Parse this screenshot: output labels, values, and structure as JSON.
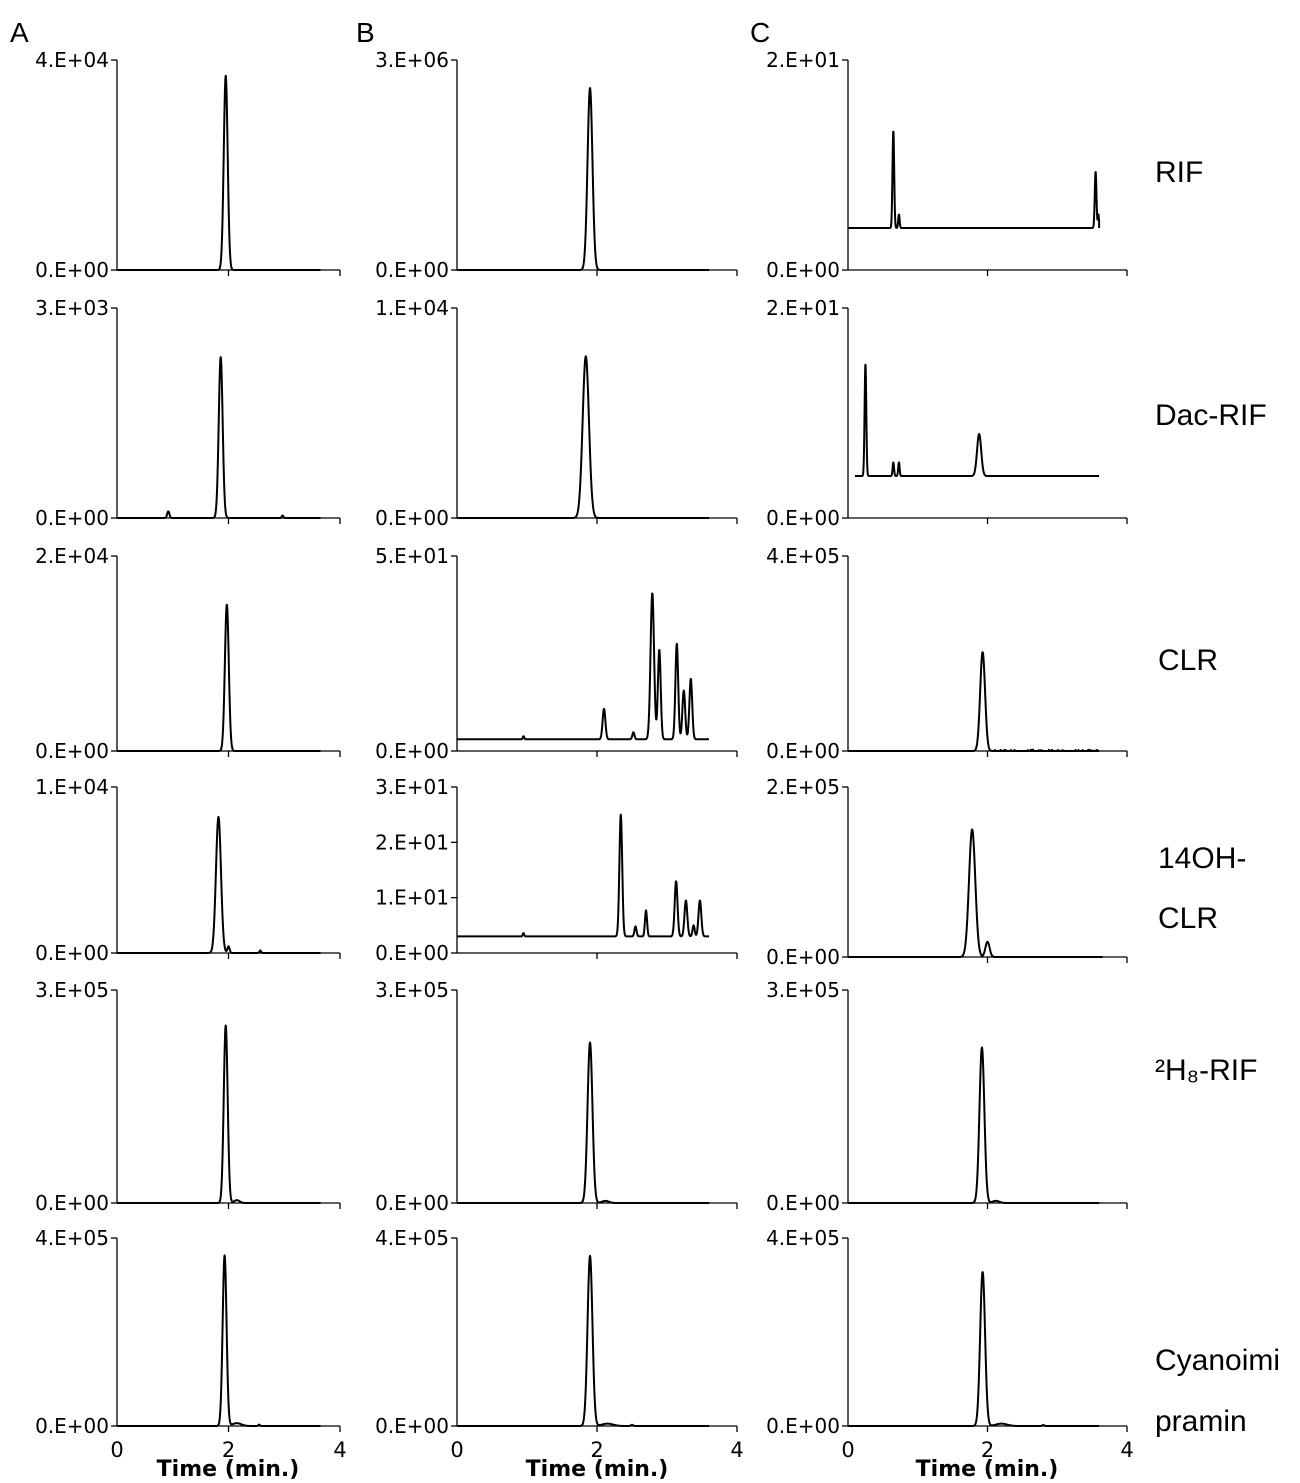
{
  "figure": {
    "column_labels": [
      "A",
      "B",
      "C"
    ],
    "row_labels": [
      [
        "RIF"
      ],
      [
        "Dac-RIF"
      ],
      [
        "CLR"
      ],
      [
        "14OH-",
        "CLR"
      ],
      [
        "²H₈-RIF"
      ],
      [
        "Cyanoimi",
        "pramin"
      ]
    ],
    "x_tick_labels": [
      "0",
      "2",
      "4"
    ],
    "x_axis_title": "Time (min.)"
  },
  "chart_data": [
    {
      "type": "line",
      "panel": "A-RIF",
      "xlim": [
        0,
        4
      ],
      "ylim": [
        0,
        40000
      ],
      "y_tick_labels": [
        "4.E+04",
        "0.E+00"
      ],
      "x_tick_labels": [
        "0",
        "2",
        "4"
      ],
      "baseline": 0,
      "noise": 0,
      "end_x": 3.65,
      "peaks": [
        {
          "x": 1.95,
          "height": 37000,
          "width": 0.035
        }
      ]
    },
    {
      "type": "line",
      "panel": "B-RIF",
      "xlim": [
        0,
        4
      ],
      "ylim": [
        0,
        3000000
      ],
      "y_tick_labels": [
        "3.E+06",
        "0.E+00"
      ],
      "x_tick_labels": [
        "0",
        "2",
        "4"
      ],
      "baseline": 0,
      "noise": 0,
      "end_x": 3.6,
      "peaks": [
        {
          "x": 1.9,
          "height": 2600000,
          "width": 0.035
        }
      ]
    },
    {
      "type": "line",
      "panel": "C-RIF",
      "xlim": [
        0,
        4
      ],
      "ylim": [
        0,
        20
      ],
      "y_tick_labels": [
        "2.E+01",
        "0.E+00"
      ],
      "x_tick_labels": [
        "0",
        "2",
        "4"
      ],
      "baseline": 4,
      "noise": 0,
      "start_x": 0,
      "end_x": 3.6,
      "peaks": [
        {
          "x": 0.65,
          "height": 9.3,
          "width": 0.012
        },
        {
          "x": 0.73,
          "height": 1.3,
          "width": 0.01
        },
        {
          "x": 3.55,
          "height": 5.4,
          "width": 0.012
        },
        {
          "x": 3.59,
          "height": 1.3,
          "width": 0.008
        }
      ]
    },
    {
      "type": "line",
      "panel": "A-Dac-RIF",
      "xlim": [
        0,
        4
      ],
      "ylim": [
        0,
        3000
      ],
      "y_tick_labels": [
        "3.E+03",
        "0.E+00"
      ],
      "x_tick_labels": [
        "0",
        "2",
        "4"
      ],
      "baseline": 0,
      "noise": 0,
      "end_x": 3.65,
      "peaks": [
        {
          "x": 0.92,
          "height": 95,
          "width": 0.02
        },
        {
          "x": 1.86,
          "height": 2300,
          "width": 0.035
        },
        {
          "x": 2.97,
          "height": 35,
          "width": 0.015
        }
      ]
    },
    {
      "type": "line",
      "panel": "B-Dac-RIF",
      "xlim": [
        0,
        4
      ],
      "ylim": [
        0,
        10000
      ],
      "y_tick_labels": [
        "1.E+04",
        "0.E+00"
      ],
      "x_tick_labels": [
        "0",
        "2",
        "4"
      ],
      "baseline": 0,
      "noise": 0,
      "end_x": 3.6,
      "peaks": [
        {
          "x": 1.84,
          "height": 7700,
          "width": 0.045
        }
      ]
    },
    {
      "type": "line",
      "panel": "C-Dac-RIF",
      "xlim": [
        0,
        4
      ],
      "ylim": [
        0,
        20
      ],
      "y_tick_labels": [
        "2.E+01",
        "0.E+00"
      ],
      "x_tick_labels": [
        "0",
        "2",
        "4"
      ],
      "baseline": 4,
      "noise": 0,
      "start_x": 0.1,
      "end_x": 3.6,
      "peaks": [
        {
          "x": 0.25,
          "height": 10.7,
          "width": 0.012
        },
        {
          "x": 0.65,
          "height": 1.3,
          "width": 0.01
        },
        {
          "x": 0.73,
          "height": 1.3,
          "width": 0.01
        },
        {
          "x": 1.88,
          "height": 4,
          "width": 0.03
        }
      ]
    },
    {
      "type": "line",
      "panel": "A-CLR",
      "xlim": [
        0,
        4
      ],
      "ylim": [
        0,
        20000
      ],
      "y_tick_labels": [
        "2.E+04",
        "0.E+00"
      ],
      "x_tick_labels": [
        "0",
        "2",
        "4"
      ],
      "baseline": 0,
      "noise": 0,
      "end_x": 3.65,
      "peaks": [
        {
          "x": 1.97,
          "height": 15000,
          "width": 0.035
        }
      ]
    },
    {
      "type": "line",
      "panel": "B-CLR",
      "xlim": [
        0,
        4
      ],
      "ylim": [
        0,
        50
      ],
      "y_tick_labels": [
        "5.E+01",
        "0.E+00"
      ],
      "x_tick_labels": [
        "0",
        "2",
        "4"
      ],
      "baseline": 3,
      "noise": 0,
      "start_x": 0,
      "end_x": 3.6,
      "peaks": [
        {
          "x": 0.95,
          "height": 0.8,
          "width": 0.01
        },
        {
          "x": 2.1,
          "height": 7.8,
          "width": 0.02
        },
        {
          "x": 2.52,
          "height": 1.8,
          "width": 0.015
        },
        {
          "x": 2.79,
          "height": 37.5,
          "width": 0.025
        },
        {
          "x": 2.89,
          "height": 23,
          "width": 0.02
        },
        {
          "x": 3.14,
          "height": 24.5,
          "width": 0.02
        },
        {
          "x": 3.24,
          "height": 12.5,
          "width": 0.02
        },
        {
          "x": 3.34,
          "height": 15.5,
          "width": 0.02
        }
      ]
    },
    {
      "type": "line",
      "panel": "C-CLR",
      "xlim": [
        0,
        4
      ],
      "ylim": [
        0,
        400000
      ],
      "y_tick_labels": [
        "4.E+05",
        "0.E+00"
      ],
      "x_tick_labels": [
        "0",
        "2",
        "4"
      ],
      "baseline": 0,
      "noise": 3000,
      "end_x": 3.6,
      "peaks": [
        {
          "x": 1.93,
          "height": 203000,
          "width": 0.035
        }
      ]
    },
    {
      "type": "line",
      "panel": "A-14OH-CLR",
      "xlim": [
        0,
        4
      ],
      "ylim": [
        0,
        10000
      ],
      "y_tick_labels": [
        "1.E+04",
        "0.E+00"
      ],
      "x_tick_labels": [
        "0",
        "2",
        "4"
      ],
      "baseline": 0,
      "noise": 0,
      "end_x": 3.65,
      "peaks": [
        {
          "x": 1.82,
          "height": 8200,
          "width": 0.045
        },
        {
          "x": 2.0,
          "height": 400,
          "width": 0.02
        },
        {
          "x": 2.57,
          "height": 150,
          "width": 0.015
        }
      ]
    },
    {
      "type": "line",
      "panel": "B-14OH-CLR",
      "xlim": [
        0,
        4
      ],
      "ylim": [
        0,
        30
      ],
      "y_tick_labels": [
        "3.E+01",
        "2.E+01",
        "1.E+01",
        "0.E+00"
      ],
      "x_tick_labels": [
        "0",
        "2",
        "4"
      ],
      "baseline": 3,
      "noise": 0,
      "start_x": 0,
      "end_x": 3.6,
      "peaks": [
        {
          "x": 0.95,
          "height": 0.6,
          "width": 0.01
        },
        {
          "x": 2.34,
          "height": 22,
          "width": 0.02
        },
        {
          "x": 2.55,
          "height": 1.8,
          "width": 0.015
        },
        {
          "x": 2.7,
          "height": 4.7,
          "width": 0.015
        },
        {
          "x": 3.13,
          "height": 10,
          "width": 0.02
        },
        {
          "x": 3.27,
          "height": 6.5,
          "width": 0.02
        },
        {
          "x": 3.38,
          "height": 2,
          "width": 0.015
        },
        {
          "x": 3.47,
          "height": 6.5,
          "width": 0.02
        }
      ]
    },
    {
      "type": "line",
      "panel": "C-14OH-CLR",
      "xlim": [
        0,
        4
      ],
      "ylim": [
        0,
        200000
      ],
      "y_tick_labels": [
        "2.E+05",
        "0.E+00"
      ],
      "x_tick_labels": [
        "0",
        "2",
        "4"
      ],
      "baseline": 0,
      "noise": 0,
      "end_x": 3.65,
      "peaks": [
        {
          "x": 1.78,
          "height": 150000,
          "width": 0.045
        },
        {
          "x": 2.0,
          "height": 18000,
          "width": 0.03
        }
      ]
    },
    {
      "type": "line",
      "panel": "A-2H8-RIF",
      "xlim": [
        0,
        4
      ],
      "ylim": [
        0,
        300000
      ],
      "y_tick_labels": [
        "3.E+05",
        "0.E+00"
      ],
      "x_tick_labels": [
        "0",
        "2",
        "4"
      ],
      "baseline": 0,
      "noise": 0,
      "end_x": 3.65,
      "peaks": [
        {
          "x": 1.95,
          "height": 250000,
          "width": 0.035
        },
        {
          "x": 2.15,
          "height": 4000,
          "width": 0.05
        }
      ]
    },
    {
      "type": "line",
      "panel": "B-2H8-RIF",
      "xlim": [
        0,
        4
      ],
      "ylim": [
        0,
        300000
      ],
      "y_tick_labels": [
        "3.E+05",
        "0.E+00"
      ],
      "x_tick_labels": [
        "0",
        "2",
        "4"
      ],
      "baseline": 0,
      "noise": 0,
      "end_x": 3.6,
      "peaks": [
        {
          "x": 1.9,
          "height": 226000,
          "width": 0.035
        },
        {
          "x": 2.12,
          "height": 3000,
          "width": 0.05
        }
      ]
    },
    {
      "type": "line",
      "panel": "C-2H8-RIF",
      "xlim": [
        0,
        4
      ],
      "ylim": [
        0,
        300000
      ],
      "y_tick_labels": [
        "3.E+05",
        "0.E+00"
      ],
      "x_tick_labels": [
        "0",
        "2",
        "4"
      ],
      "baseline": 0,
      "noise": 0,
      "end_x": 3.6,
      "peaks": [
        {
          "x": 1.92,
          "height": 219000,
          "width": 0.035
        },
        {
          "x": 2.12,
          "height": 3000,
          "width": 0.05
        }
      ]
    },
    {
      "type": "line",
      "panel": "A-Cyanoimipramin",
      "xlim": [
        0,
        4
      ],
      "ylim": [
        0,
        400000
      ],
      "y_tick_labels": [
        "4.E+05",
        "0.E+00"
      ],
      "x_tick_labels": [
        "0",
        "2",
        "4"
      ],
      "baseline": 0,
      "noise": 0,
      "end_x": 3.65,
      "peaks": [
        {
          "x": 1.93,
          "height": 363000,
          "width": 0.035
        },
        {
          "x": 2.15,
          "height": 6000,
          "width": 0.08
        },
        {
          "x": 2.55,
          "height": 3000,
          "width": 0.015
        }
      ]
    },
    {
      "type": "line",
      "panel": "B-Cyanoimipramin",
      "xlim": [
        0,
        4
      ],
      "ylim": [
        0,
        400000
      ],
      "y_tick_labels": [
        "4.E+05",
        "0.E+00"
      ],
      "x_tick_labels": [
        "0",
        "2",
        "4"
      ],
      "baseline": 0,
      "noise": 0,
      "end_x": 3.6,
      "peaks": [
        {
          "x": 1.9,
          "height": 362000,
          "width": 0.035
        },
        {
          "x": 2.15,
          "height": 5000,
          "width": 0.08
        },
        {
          "x": 2.5,
          "height": 2500,
          "width": 0.015
        }
      ]
    },
    {
      "type": "line",
      "panel": "C-Cyanoimipramin",
      "xlim": [
        0,
        4
      ],
      "ylim": [
        0,
        400000
      ],
      "y_tick_labels": [
        "4.E+05",
        "0.E+00"
      ],
      "x_tick_labels": [
        "0",
        "2",
        "4"
      ],
      "baseline": 0,
      "noise": 0,
      "end_x": 3.6,
      "peaks": [
        {
          "x": 1.93,
          "height": 328000,
          "width": 0.035
        },
        {
          "x": 2.2,
          "height": 5000,
          "width": 0.08
        },
        {
          "x": 2.8,
          "height": 2000,
          "width": 0.015
        }
      ]
    }
  ]
}
